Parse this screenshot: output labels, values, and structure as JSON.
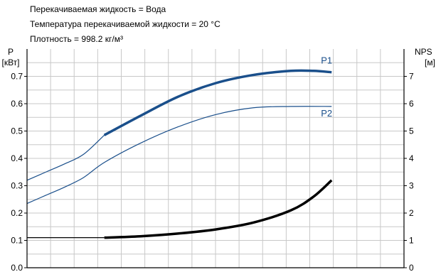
{
  "header": {
    "line1": "Перекачиваемая жидкость = Вода",
    "line2": "Температура перекачиваемой жидкости = 20 °C",
    "line3": "Плотность = 998.2 кг/м³"
  },
  "chart_data": {
    "type": "line",
    "left_axis": {
      "label_line1": "P",
      "label_line2": "[кВт]",
      "ylim": [
        0,
        0.8
      ],
      "ticks": [
        "0.0",
        "0.1",
        "0.2",
        "0.3",
        "0.4",
        "0.5",
        "0.6",
        "0.7"
      ]
    },
    "right_axis": {
      "label_line1": "NPS",
      "label_line2": "[м]",
      "ylim": [
        0,
        8
      ],
      "ticks": [
        "0",
        "1",
        "2",
        "3",
        "4",
        "5",
        "6",
        "7"
      ]
    },
    "grid": true,
    "colors": {
      "power": "#1a4f8b",
      "npsh": "#000000"
    },
    "series": [
      {
        "name": "P1",
        "axis": "left",
        "color": "#1a4f8b",
        "thin_points": [
          [
            0.0,
            0.32
          ],
          [
            0.05,
            0.35
          ],
          [
            0.1,
            0.38
          ],
          [
            0.15,
            0.415
          ],
          [
            0.205,
            0.485
          ]
        ],
        "thick_points": [
          [
            0.205,
            0.485
          ],
          [
            0.3,
            0.555
          ],
          [
            0.4,
            0.625
          ],
          [
            0.5,
            0.675
          ],
          [
            0.6,
            0.705
          ],
          [
            0.7,
            0.72
          ],
          [
            0.76,
            0.72
          ],
          [
            0.808,
            0.715
          ]
        ]
      },
      {
        "name": "P2",
        "axis": "left",
        "color": "#1a4f8b",
        "thin_points": [
          [
            0.0,
            0.235
          ],
          [
            0.05,
            0.265
          ],
          [
            0.1,
            0.295
          ],
          [
            0.15,
            0.33
          ],
          [
            0.205,
            0.385
          ],
          [
            0.3,
            0.455
          ],
          [
            0.4,
            0.515
          ],
          [
            0.5,
            0.56
          ],
          [
            0.6,
            0.585
          ],
          [
            0.7,
            0.59
          ],
          [
            0.808,
            0.59
          ]
        ],
        "thick_points": []
      },
      {
        "name": "",
        "axis": "right",
        "color": "#000000",
        "thin_points": [
          [
            0.0,
            1.1
          ],
          [
            0.1,
            1.1
          ],
          [
            0.205,
            1.1
          ]
        ],
        "thick_points": [
          [
            0.205,
            1.1
          ],
          [
            0.3,
            1.15
          ],
          [
            0.4,
            1.25
          ],
          [
            0.5,
            1.4
          ],
          [
            0.6,
            1.65
          ],
          [
            0.7,
            2.1
          ],
          [
            0.76,
            2.6
          ],
          [
            0.808,
            3.2
          ]
        ]
      }
    ]
  }
}
